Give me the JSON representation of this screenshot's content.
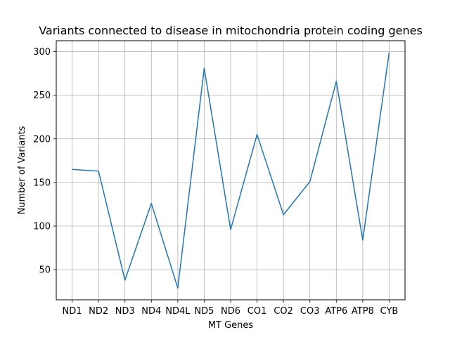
{
  "chart_data": {
    "type": "line",
    "title": "Variants connected to disease in mitochondria protein coding genes",
    "xlabel": "MT Genes",
    "ylabel": "Number of Variants",
    "categories": [
      "ND1",
      "ND2",
      "ND3",
      "ND4",
      "ND4L",
      "ND5",
      "ND6",
      "CO1",
      "CO2",
      "CO3",
      "ATP6",
      "ATP8",
      "CYB"
    ],
    "series": [
      {
        "values": [
          165,
          163,
          38,
          126,
          29,
          281,
          96,
          205,
          113,
          151,
          266,
          84,
          299
        ],
        "color": "#1f77b4"
      }
    ],
    "ylim": [
      15.5,
      312.5
    ],
    "yticks": [
      50,
      100,
      150,
      200,
      250,
      300
    ],
    "grid": true,
    "legend": "none"
  }
}
